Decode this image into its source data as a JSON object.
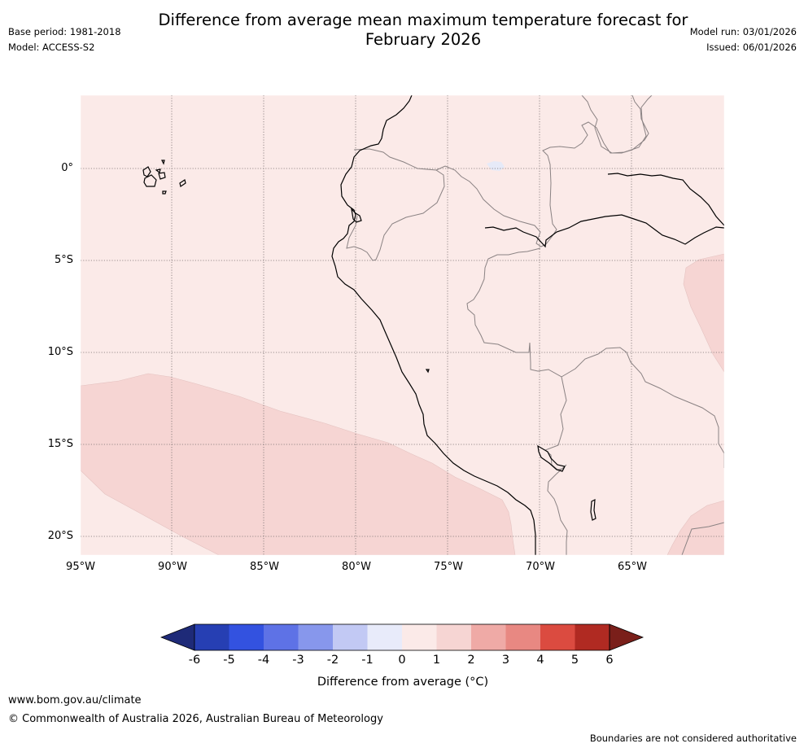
{
  "header": {
    "title_line1": "Difference from average mean maximum temperature forecast for",
    "title_line2": "February 2026",
    "base_period": "Base period: 1981-2018",
    "model": "Model: ACCESS-S2",
    "model_run": "Model run: 03/01/2026",
    "issued": "Issued: 06/01/2026"
  },
  "map": {
    "lat_labels": [
      "0°",
      "5°S",
      "10°S",
      "15°S",
      "20°S"
    ],
    "lon_labels": [
      "95°W",
      "90°W",
      "85°W",
      "80°W",
      "75°W",
      "70°W",
      "65°W"
    ],
    "colors": {
      "background_anomaly_0_1": "#fbeae8",
      "anomaly_1_2": "#f6d5d3",
      "anomaly_neg1_0": "#e6eaf8",
      "coast": "#000000",
      "border": "#8a8283",
      "grid": "#7a7070"
    }
  },
  "colorbar": {
    "ticks": [
      "-6",
      "-5",
      "-4",
      "-3",
      "-2",
      "-1",
      "0",
      "1",
      "2",
      "3",
      "4",
      "5",
      "6"
    ],
    "colors": [
      "#1e2a78",
      "#263fb3",
      "#3352e0",
      "#5e72e6",
      "#8797ec",
      "#c2c9f4",
      "#e8ebfa",
      "#fbeae8",
      "#f6d5d3",
      "#efaaa6",
      "#e88882",
      "#db4b40",
      "#b02a22",
      "#7a1f1a"
    ],
    "label": "Difference from average (°C)"
  },
  "footer": {
    "website": "www.bom.gov.au/climate",
    "copyright": "© Commonwealth of Australia 2026, Australian Bureau of Meteorology",
    "disclaimer": "Boundaries are not considered authoritative"
  }
}
